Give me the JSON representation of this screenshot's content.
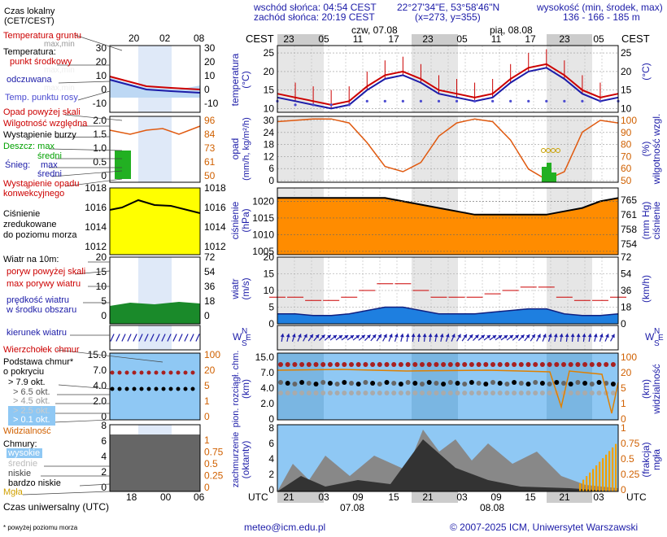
{
  "header": {
    "sunrise": "wschód słońca: 04:54 CEST",
    "sunset": "zachód słońca: 20:19 CEST",
    "coords": "22°27'34\"E, 53°58'46\"N",
    "grid": "(x=273,  y=355)",
    "elev_title": "wysokość (min, środek, max)",
    "elev_values": "136 - 166 - 185 m"
  },
  "left": {
    "time_label": "Czas lokalny",
    "time_label2": "(CET/CEST)",
    "hours_top": [
      "20",
      "02",
      "08"
    ],
    "hours_bottom": [
      "18",
      "00",
      "06"
    ],
    "utc_label": "Czas uniwersalny (UTC)",
    "footnote": "* powyżej poziomu morza",
    "temp": {
      "ground": "Temperatura gruntu",
      "maxmin": "max,min",
      "temperatura": "Temperatura:",
      "mid": "punkt środkowy",
      "maxmin2": "max,min",
      "felt": "odczuwana",
      "maxmin3": "max,min",
      "dew": "Temp. punktu rosy",
      "ticks": [
        "30",
        "20",
        "10",
        "0",
        "-10"
      ],
      "ticks_r": [
        "30",
        "20",
        "10",
        "0",
        "-10"
      ]
    },
    "prec": {
      "opad": "Opad powyżej skali",
      "wilg": "Wilgotność względna",
      "burza": "Wystąpienie burzy",
      "deszcz": "Deszcz: max",
      "sredni": "średni",
      "snieg": "Śnieg:",
      "max": "max",
      "sredni2": "średni",
      "wystap": "Wystąpienie opadu",
      "konw": "konwekcyjnego",
      "ticks": [
        "2.0",
        "1.5",
        "1.0",
        "0.5",
        "0"
      ],
      "ticks_r": [
        "96",
        "84",
        "73",
        "61",
        "50"
      ]
    },
    "press": {
      "l1": "Ciśnienie",
      "l2": "zredukowane",
      "l3": "do poziomu morza",
      "ticks": [
        "1018",
        "1016",
        "1014",
        "1012"
      ],
      "ticks_r": [
        "1018",
        "1016",
        "1014",
        "1012"
      ]
    },
    "wind": {
      "l1": "Wiatr na 10m:",
      "l2": "poryw powyżej skali",
      "l3": "max porywy wiatru",
      "l4": "prędkość wiatru",
      "l5": "w środku obszaru",
      "ticks": [
        "20",
        "15",
        "10",
        "5",
        "0"
      ],
      "ticks_r": [
        "72",
        "54",
        "36",
        "18",
        "0"
      ]
    },
    "dir": {
      "l1": "kierunek wiatru"
    },
    "cloud": {
      "l0": "Wierzchołek chmur",
      "l1": "Podstawa chmur*",
      "l2": "o pokryciu",
      "o1": "> 7.9 okt.",
      "o2": "> 6.5 okt.",
      "o3": "> 4.5 okt.",
      "o4": "> 2.5 okt.",
      "o5": "> 0.1 okt.",
      "vis": "Widzialność",
      "ticks": [
        "15.0",
        "7.0",
        "4.0",
        "2.0",
        "0"
      ],
      "ticks_r": [
        "100",
        "20",
        "5",
        "1",
        "0"
      ]
    },
    "cov": {
      "l1": "Chmury:",
      "l2": "wysokie",
      "l3": "średnie",
      "l4": "niskie",
      "l5": "bardzo niskie",
      "l6": "Mgła",
      "ticks": [
        "8",
        "6",
        "4",
        "2",
        "0"
      ],
      "ticks_r": [
        "1",
        "0.75",
        "0.5",
        "0.25",
        "0"
      ]
    }
  },
  "main": {
    "cest": "CEST",
    "utc": "UTC",
    "day1": "czw, 07.08",
    "day2": "pią, 08.08",
    "date1": "07.08",
    "date2": "08.08",
    "hours_top": [
      "23",
      "05",
      "11",
      "17",
      "23",
      "05",
      "11",
      "17",
      "23",
      "05"
    ],
    "hours_bottom": [
      "21",
      "03",
      "09",
      "15",
      "21",
      "03",
      "09",
      "15",
      "21",
      "03"
    ],
    "labels": {
      "temp": [
        "temperatura",
        "(°C)"
      ],
      "temp_r": "(°C)",
      "prec": [
        "opad",
        "(mm/h, kg/m²/h)"
      ],
      "prec_r": [
        "(%)",
        "wilgotność wzgl."
      ],
      "press": [
        "ciśnienie",
        "(hPa)"
      ],
      "press_r": [
        "(mm Hg)",
        "ciśnienie"
      ],
      "wind": [
        "wiatr",
        "(m/s)"
      ],
      "wind_r": "(km/h)",
      "dir_l": "W",
      "dir_n": "N",
      "dir_e": "E",
      "dir_s": "S",
      "cloud": [
        "pion. rozciągł. chm.",
        "(km)"
      ],
      "cloud_r": [
        "(km)",
        "widzialność"
      ],
      "cov": [
        "zachmurzenie",
        "(oktanty)"
      ],
      "cov_r": [
        "(frakcja)",
        "mgła"
      ]
    },
    "ticks": {
      "temp": [
        "25",
        "20",
        "15",
        "10"
      ],
      "prec": [
        "30",
        "24",
        "18",
        "12",
        "6",
        "0"
      ],
      "prec_r": [
        "100",
        "90",
        "80",
        "70",
        "60",
        "50"
      ],
      "press": [
        "1020",
        "1015",
        "1010",
        "1005"
      ],
      "press_r": [
        "765",
        "761",
        "758",
        "754"
      ],
      "wind": [
        "20",
        "15",
        "10",
        "5",
        "0"
      ],
      "wind_r": [
        "72",
        "54",
        "36",
        "18",
        "0"
      ],
      "cloud": [
        "15.0",
        "7.0",
        "4.0",
        "2.0",
        "0"
      ],
      "cloud_r": [
        "100",
        "20",
        "5",
        "1",
        "0"
      ],
      "cov": [
        "8",
        "6",
        "4",
        "2",
        "0"
      ],
      "cov_r": [
        "1",
        "0.75",
        "0.5",
        "0.25",
        "0"
      ]
    }
  },
  "footer": {
    "email": "meteo@icm.edu.pl",
    "copyright": "© 2007-2025 ICM, Uniwersytet Warszawski"
  },
  "colors": {
    "night": "#e6e6e6",
    "sky": "#8fc8f4",
    "red": "#cc0000",
    "blue": "#1c1ca8",
    "orange": "#d06000"
  },
  "chart_data": {
    "type": "line",
    "x_hours_utc": [
      21,
      0,
      3,
      6,
      9,
      12,
      15,
      18,
      21,
      0,
      3,
      6,
      9,
      12,
      15,
      18,
      21,
      0,
      3,
      6
    ],
    "temperature_mid": [
      14,
      13,
      12,
      11,
      12,
      16,
      19,
      20,
      18,
      15,
      14,
      13,
      14,
      18,
      21,
      22,
      19,
      15,
      13,
      14
    ],
    "temperature_felt": [
      13,
      12,
      11,
      10,
      11,
      15,
      18,
      19,
      17,
      14,
      13,
      12,
      13,
      17,
      20,
      21,
      18,
      14,
      12,
      13
    ],
    "dew_point": [
      12,
      11,
      11,
      11,
      11,
      12,
      12,
      12,
      12,
      12,
      12,
      12,
      12,
      12,
      12,
      12,
      12,
      12,
      12,
      12
    ],
    "relative_humidity_pct": [
      96,
      97,
      98,
      98,
      95,
      80,
      62,
      58,
      65,
      85,
      95,
      98,
      96,
      82,
      60,
      52,
      58,
      88,
      97,
      95
    ],
    "pressure_hpa": [
      1021,
      1021,
      1021,
      1021,
      1021,
      1021,
      1021,
      1020,
      1019,
      1018,
      1017,
      1016,
      1016,
      1016,
      1016,
      1016,
      1017,
      1018,
      1020,
      1021
    ],
    "wind_speed_ms": [
      3,
      3,
      2.5,
      2.5,
      3,
      4,
      5,
      5,
      4,
      3,
      3,
      3,
      3.5,
      4,
      4.5,
      4.5,
      3,
      2.5,
      2.5,
      3
    ],
    "wind_gust_ms": [
      8,
      8,
      7,
      7,
      8,
      10,
      12,
      12,
      10,
      8,
      8,
      8,
      9,
      10,
      11,
      11,
      8,
      7,
      7,
      8
    ]
  }
}
